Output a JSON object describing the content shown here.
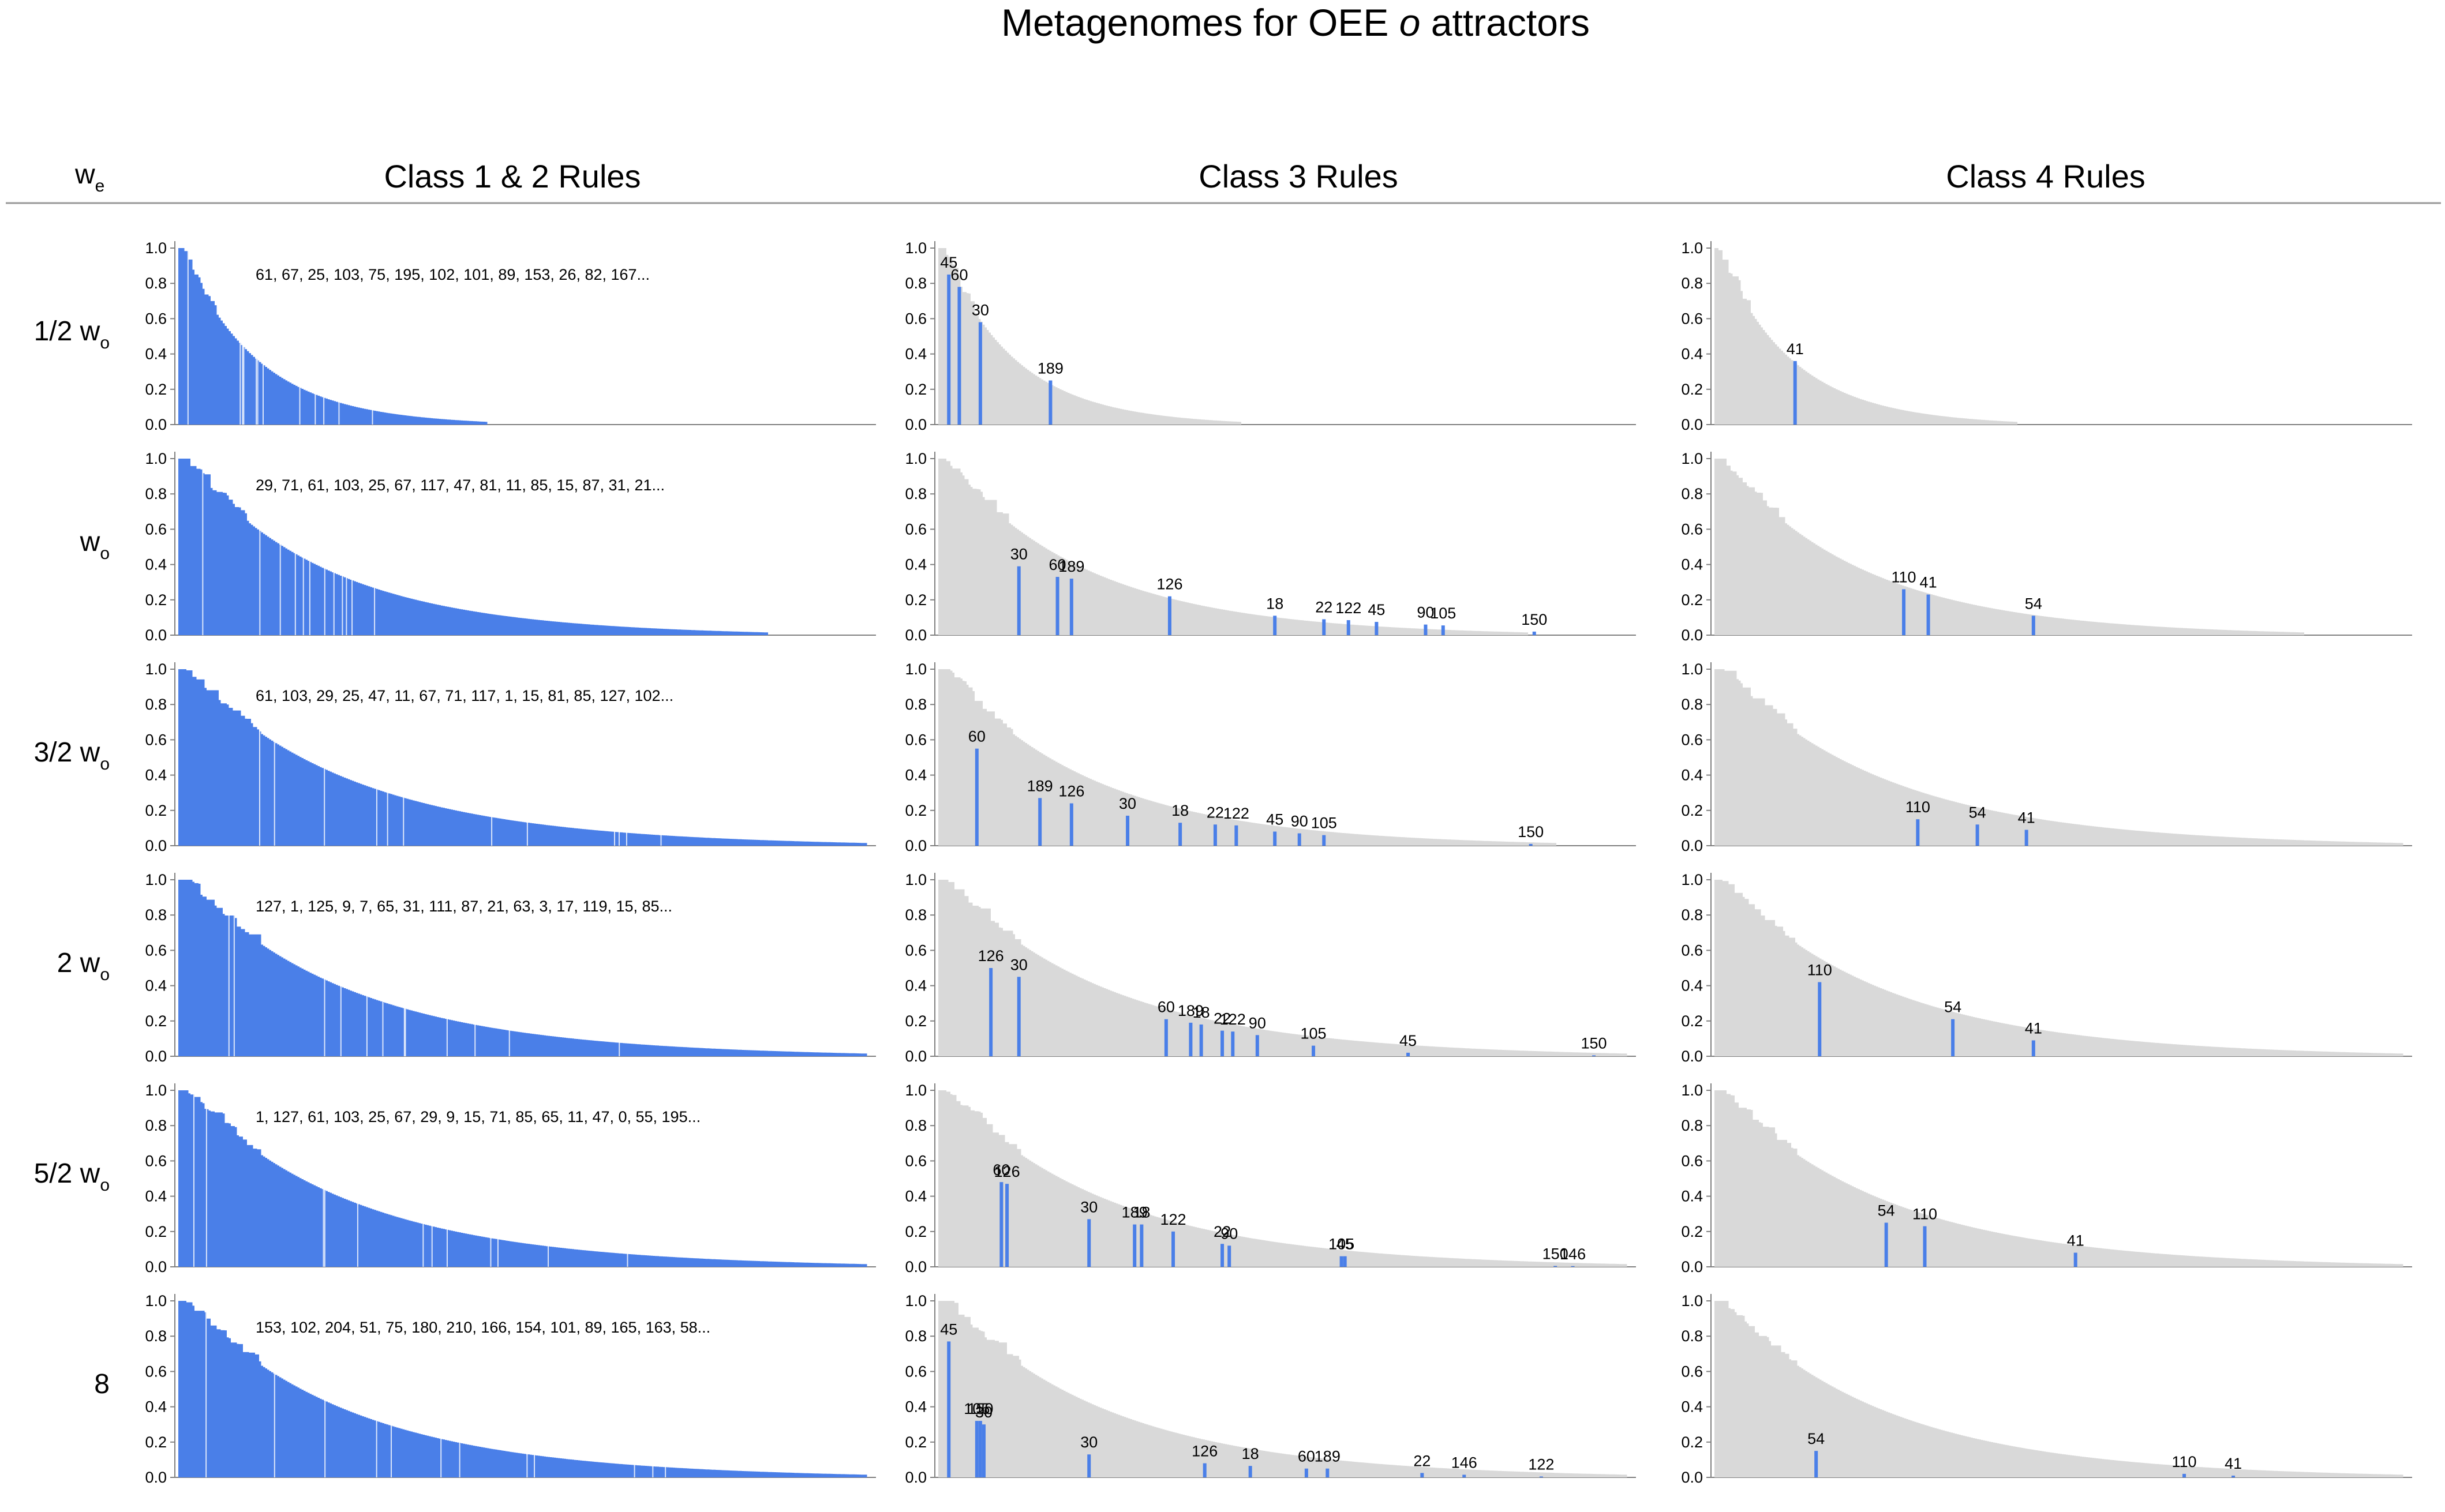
{
  "title": {
    "pre": "Metagenomes for OEE ",
    "italic": "o",
    "post": " attractors"
  },
  "row_header": {
    "main": "w",
    "sub": "e"
  },
  "columns": [
    "Class 1 & 2 Rules",
    "Class 3 Rules",
    "Class 4 Rules"
  ],
  "rows": [
    {
      "main": "1/2 w",
      "sub": "o"
    },
    {
      "main": "w",
      "sub": "o"
    },
    {
      "main": "3/2 w",
      "sub": "o"
    },
    {
      "main": "2 w",
      "sub": "o"
    },
    {
      "main": "5/2 w",
      "sub": "o"
    },
    {
      "main": "8",
      "sub": ""
    }
  ],
  "colors": {
    "highlight": "#4a7fe8",
    "background_bars": "#d9d9d9",
    "axis": "#808080"
  },
  "chart_data": {
    "type": "bar",
    "panel_type": "rank-ordered frequency distribution",
    "ylim": [
      0,
      1
    ],
    "yticks": [
      "0.0",
      "0.2",
      "0.4",
      "0.6",
      "0.8",
      "1.0"
    ],
    "class12_rule_lists": [
      "61, 67, 25, 103, 75, 195, 102, 101, 89, 153, 26, 82, 167...",
      "29, 71, 61, 103, 25, 67, 117, 47, 81, 11, 85, 15, 87, 31, 21...",
      "61, 103, 29, 25, 47, 11, 67, 71, 117, 1, 15, 81, 85, 127, 102...",
      "127, 1, 125, 9, 7, 65, 31, 111, 87, 21, 63, 3, 17, 119, 15, 85...",
      "1, 127, 61, 103, 25, 67, 29, 9, 15, 71, 85, 65, 11, 47, 0, 55, 195...",
      "153, 102, 204, 51, 75, 180, 210, 166, 154, 101, 89, 165, 163, 58..."
    ],
    "class3": [
      [
        {
          "rule": "45",
          "rank": 0.015,
          "value": 0.85
        },
        {
          "rule": "60",
          "rank": 0.03,
          "value": 0.78
        },
        {
          "rule": "30",
          "rank": 0.06,
          "value": 0.58
        },
        {
          "rule": "189",
          "rank": 0.16,
          "value": 0.25
        }
      ],
      [
        {
          "rule": "30",
          "rank": 0.115,
          "value": 0.39
        },
        {
          "rule": "60",
          "rank": 0.17,
          "value": 0.33
        },
        {
          "rule": "189",
          "rank": 0.19,
          "value": 0.32
        },
        {
          "rule": "126",
          "rank": 0.33,
          "value": 0.22
        },
        {
          "rule": "18",
          "rank": 0.48,
          "value": 0.11
        },
        {
          "rule": "22",
          "rank": 0.55,
          "value": 0.09
        },
        {
          "rule": "122",
          "rank": 0.585,
          "value": 0.085
        },
        {
          "rule": "45",
          "rank": 0.625,
          "value": 0.075
        },
        {
          "rule": "90",
          "rank": 0.695,
          "value": 0.06
        },
        {
          "rule": "105",
          "rank": 0.72,
          "value": 0.055
        },
        {
          "rule": "150",
          "rank": 0.85,
          "value": 0.02
        }
      ],
      [
        {
          "rule": "60",
          "rank": 0.055,
          "value": 0.55
        },
        {
          "rule": "189",
          "rank": 0.145,
          "value": 0.27
        },
        {
          "rule": "126",
          "rank": 0.19,
          "value": 0.24
        },
        {
          "rule": "30",
          "rank": 0.27,
          "value": 0.17
        },
        {
          "rule": "18",
          "rank": 0.345,
          "value": 0.13
        },
        {
          "rule": "22",
          "rank": 0.395,
          "value": 0.12
        },
        {
          "rule": "122",
          "rank": 0.425,
          "value": 0.115
        },
        {
          "rule": "45",
          "rank": 0.48,
          "value": 0.08
        },
        {
          "rule": "90",
          "rank": 0.515,
          "value": 0.07
        },
        {
          "rule": "105",
          "rank": 0.55,
          "value": 0.06
        },
        {
          "rule": "150",
          "rank": 0.845,
          "value": 0.01
        }
      ],
      [
        {
          "rule": "126",
          "rank": 0.075,
          "value": 0.5
        },
        {
          "rule": "30",
          "rank": 0.115,
          "value": 0.45
        },
        {
          "rule": "60",
          "rank": 0.325,
          "value": 0.21
        },
        {
          "rule": "189",
          "rank": 0.36,
          "value": 0.19
        },
        {
          "rule": "18",
          "rank": 0.375,
          "value": 0.18
        },
        {
          "rule": "22",
          "rank": 0.405,
          "value": 0.145
        },
        {
          "rule": "122",
          "rank": 0.42,
          "value": 0.14
        },
        {
          "rule": "90",
          "rank": 0.455,
          "value": 0.12
        },
        {
          "rule": "105",
          "rank": 0.535,
          "value": 0.06
        },
        {
          "rule": "45",
          "rank": 0.67,
          "value": 0.02
        },
        {
          "rule": "150",
          "rank": 0.935,
          "value": 0.005
        }
      ],
      [
        {
          "rule": "60",
          "rank": 0.09,
          "value": 0.48
        },
        {
          "rule": "126",
          "rank": 0.098,
          "value": 0.47
        },
        {
          "rule": "30",
          "rank": 0.215,
          "value": 0.27
        },
        {
          "rule": "189",
          "rank": 0.28,
          "value": 0.24
        },
        {
          "rule": "18",
          "rank": 0.29,
          "value": 0.24
        },
        {
          "rule": "122",
          "rank": 0.335,
          "value": 0.2
        },
        {
          "rule": "22",
          "rank": 0.405,
          "value": 0.13
        },
        {
          "rule": "90",
          "rank": 0.415,
          "value": 0.12
        },
        {
          "rule": "105",
          "rank": 0.575,
          "value": 0.06
        },
        {
          "rule": "45",
          "rank": 0.58,
          "value": 0.06
        },
        {
          "rule": "150",
          "rank": 0.88,
          "value": 0.005
        },
        {
          "rule": "146",
          "rank": 0.905,
          "value": 0.004
        }
      ],
      [
        {
          "rule": "45",
          "rank": 0.015,
          "value": 0.77
        },
        {
          "rule": "105",
          "rank": 0.055,
          "value": 0.32
        },
        {
          "rule": "150",
          "rank": 0.06,
          "value": 0.32
        },
        {
          "rule": "30",
          "rank": 0.065,
          "value": 0.3
        },
        {
          "rule": "30",
          "rank": 0.215,
          "value": 0.13
        },
        {
          "rule": "126",
          "rank": 0.38,
          "value": 0.08
        },
        {
          "rule": "18",
          "rank": 0.445,
          "value": 0.065
        },
        {
          "rule": "60",
          "rank": 0.525,
          "value": 0.05
        },
        {
          "rule": "189",
          "rank": 0.555,
          "value": 0.05
        },
        {
          "rule": "22",
          "rank": 0.69,
          "value": 0.025
        },
        {
          "rule": "146",
          "rank": 0.75,
          "value": 0.015
        },
        {
          "rule": "122",
          "rank": 0.86,
          "value": 0.005
        }
      ]
    ],
    "class4": [
      [
        {
          "rule": "41",
          "rank": 0.115,
          "value": 0.36
        }
      ],
      [
        {
          "rule": "110",
          "rank": 0.27,
          "value": 0.26
        },
        {
          "rule": "41",
          "rank": 0.305,
          "value": 0.23
        },
        {
          "rule": "54",
          "rank": 0.455,
          "value": 0.11
        }
      ],
      [
        {
          "rule": "110",
          "rank": 0.29,
          "value": 0.15
        },
        {
          "rule": "54",
          "rank": 0.375,
          "value": 0.12
        },
        {
          "rule": "41",
          "rank": 0.445,
          "value": 0.09
        }
      ],
      [
        {
          "rule": "110",
          "rank": 0.15,
          "value": 0.42
        },
        {
          "rule": "54",
          "rank": 0.34,
          "value": 0.21
        },
        {
          "rule": "41",
          "rank": 0.455,
          "value": 0.09
        }
      ],
      [
        {
          "rule": "54",
          "rank": 0.245,
          "value": 0.25
        },
        {
          "rule": "110",
          "rank": 0.3,
          "value": 0.23
        },
        {
          "rule": "41",
          "rank": 0.515,
          "value": 0.08
        }
      ],
      [
        {
          "rule": "54",
          "rank": 0.145,
          "value": 0.15
        },
        {
          "rule": "110",
          "rank": 0.67,
          "value": 0.02
        },
        {
          "rule": "41",
          "rank": 0.74,
          "value": 0.01
        }
      ]
    ],
    "class12_fill_extent": [
      0.44,
      0.84,
      0.98,
      0.98,
      0.98,
      0.98
    ],
    "class3_fill_extent": [
      0.43,
      0.84,
      0.88,
      0.98,
      0.98,
      0.98
    ],
    "class4_fill_extent": [
      0.43,
      0.84,
      0.98,
      0.98,
      0.98,
      0.98
    ]
  }
}
